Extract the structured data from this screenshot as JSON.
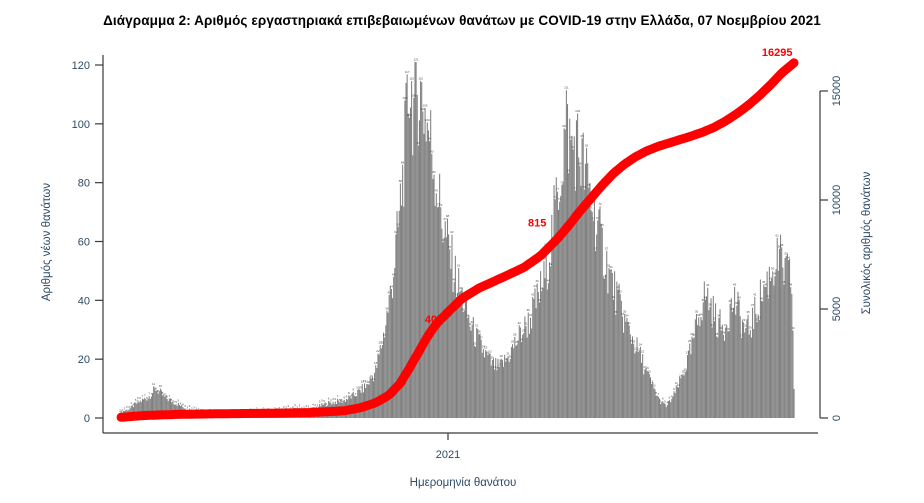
{
  "title": "Διάγραμμα 2: Αριθμός εργαστηριακά επιβεβαιωμένων θανάτων με COVID-19 στην Ελλάδα, 07 Νοεμβρίου 2021",
  "axes": {
    "left": {
      "label": "Αριθμός νέων θανάτων",
      "ticks": [
        0,
        20,
        40,
        60,
        80,
        100,
        120
      ],
      "range": [
        0,
        125
      ]
    },
    "right": {
      "label": "Συνολικός αριθμός θανάτων",
      "ticks": [
        0,
        5000,
        10000,
        15000
      ],
      "range": [
        0,
        16500
      ]
    },
    "x": {
      "label": "Ημερομηνία θανάτου",
      "tick_label": "2021"
    }
  },
  "annotations": [
    {
      "text": "405",
      "day": 280,
      "value": 4350,
      "anchor": "middle"
    },
    {
      "text": "815",
      "day": 372,
      "value": 8780,
      "anchor": "middle"
    },
    {
      "text": "16295",
      "day": 586,
      "value": 16600,
      "anchor": "middle"
    }
  ],
  "colors": {
    "bar": "#7f7f7f",
    "bar_label": "#4a4a4a",
    "line": "#ff0000",
    "annotation": "#ff0000",
    "axis_text": "#2e4a66",
    "axis_line": "#3a3a3a",
    "title": "#000000"
  },
  "chart_data": [
    {
      "type": "bar",
      "name": "daily-deaths",
      "title": "Αριθμός νέων θανάτων (daily bars, each bar carries a tiny numeric value label)",
      "x_axis": "day index (daily bars, ~601 days ending 07 Νοεμβρίου 2021; tick 2021 = day 293)",
      "ylim": [
        0,
        125
      ],
      "max_value": 121,
      "peak_labels_read": [
        121,
        119,
        112,
        110,
        101,
        100,
        99,
        93,
        92,
        91,
        55,
        53,
        46,
        41,
        30,
        27,
        22,
        18,
        16,
        10,
        8,
        5,
        3,
        2
      ],
      "envelope_keypoints": [
        [
          0,
          2
        ],
        [
          8,
          3
        ],
        [
          15,
          5
        ],
        [
          25,
          7
        ],
        [
          32,
          10
        ],
        [
          40,
          7
        ],
        [
          50,
          5
        ],
        [
          60,
          3
        ],
        [
          75,
          2
        ],
        [
          95,
          1
        ],
        [
          115,
          2
        ],
        [
          135,
          2
        ],
        [
          155,
          3
        ],
        [
          170,
          3
        ],
        [
          185,
          5
        ],
        [
          200,
          6
        ],
        [
          210,
          8
        ],
        [
          220,
          11
        ],
        [
          228,
          16
        ],
        [
          235,
          28
        ],
        [
          242,
          44
        ],
        [
          248,
          64
        ],
        [
          253,
          86
        ],
        [
          258,
          115
        ],
        [
          262,
          105
        ],
        [
          266,
          112
        ],
        [
          270,
          108
        ],
        [
          274,
          100
        ],
        [
          278,
          92
        ],
        [
          283,
          78
        ],
        [
          288,
          66
        ],
        [
          294,
          56
        ],
        [
          300,
          47
        ],
        [
          306,
          40
        ],
        [
          312,
          32
        ],
        [
          318,
          27
        ],
        [
          325,
          22
        ],
        [
          332,
          18
        ],
        [
          338,
          17
        ],
        [
          345,
          20
        ],
        [
          352,
          25
        ],
        [
          358,
          29
        ],
        [
          365,
          33
        ],
        [
          372,
          40
        ],
        [
          379,
          48
        ],
        [
          385,
          62
        ],
        [
          390,
          76
        ],
        [
          395,
          90
        ],
        [
          398,
          100
        ],
        [
          402,
          92
        ],
        [
          406,
          93
        ],
        [
          410,
          90
        ],
        [
          414,
          84
        ],
        [
          419,
          76
        ],
        [
          424,
          68
        ],
        [
          430,
          58
        ],
        [
          437,
          48
        ],
        [
          444,
          40
        ],
        [
          450,
          33
        ],
        [
          457,
          27
        ],
        [
          464,
          21
        ],
        [
          470,
          15
        ],
        [
          476,
          10
        ],
        [
          481,
          6
        ],
        [
          487,
          4
        ],
        [
          493,
          7
        ],
        [
          499,
          12
        ],
        [
          505,
          18
        ],
        [
          510,
          24
        ],
        [
          514,
          31
        ],
        [
          518,
          38
        ],
        [
          522,
          42
        ],
        [
          527,
          38
        ],
        [
          532,
          33
        ],
        [
          538,
          30
        ],
        [
          543,
          36
        ],
        [
          548,
          40
        ],
        [
          553,
          34
        ],
        [
          558,
          29
        ],
        [
          562,
          31
        ],
        [
          567,
          36
        ],
        [
          572,
          42
        ],
        [
          578,
          47
        ],
        [
          583,
          52
        ],
        [
          588,
          54
        ],
        [
          592,
          50
        ],
        [
          596,
          48
        ],
        [
          599,
          46
        ],
        [
          601,
          10
        ]
      ]
    },
    {
      "type": "line",
      "name": "cumulative-deaths",
      "title": "Συνολικός αριθμός θανάτων (thick red cumulative curve)",
      "ylim": [
        0,
        16500
      ],
      "end_value": 16295,
      "keypoints": [
        [
          1,
          30
        ],
        [
          20,
          110
        ],
        [
          50,
          165
        ],
        [
          90,
          195
        ],
        [
          130,
          215
        ],
        [
          170,
          250
        ],
        [
          200,
          330
        ],
        [
          215,
          480
        ],
        [
          228,
          700
        ],
        [
          240,
          1050
        ],
        [
          250,
          1600
        ],
        [
          258,
          2280
        ],
        [
          266,
          3000
        ],
        [
          274,
          3720
        ],
        [
          282,
          4320
        ],
        [
          293,
          4880
        ],
        [
          305,
          5480
        ],
        [
          320,
          5960
        ],
        [
          340,
          6420
        ],
        [
          360,
          6900
        ],
        [
          375,
          7440
        ],
        [
          390,
          8220
        ],
        [
          400,
          8820
        ],
        [
          410,
          9480
        ],
        [
          420,
          10080
        ],
        [
          430,
          10680
        ],
        [
          440,
          11220
        ],
        [
          450,
          11650
        ],
        [
          460,
          11990
        ],
        [
          470,
          12260
        ],
        [
          480,
          12460
        ],
        [
          490,
          12620
        ],
        [
          500,
          12780
        ],
        [
          510,
          12940
        ],
        [
          520,
          13120
        ],
        [
          530,
          13340
        ],
        [
          540,
          13620
        ],
        [
          550,
          13960
        ],
        [
          560,
          14340
        ],
        [
          570,
          14780
        ],
        [
          580,
          15280
        ],
        [
          590,
          15820
        ],
        [
          601,
          16295
        ]
      ]
    }
  ]
}
